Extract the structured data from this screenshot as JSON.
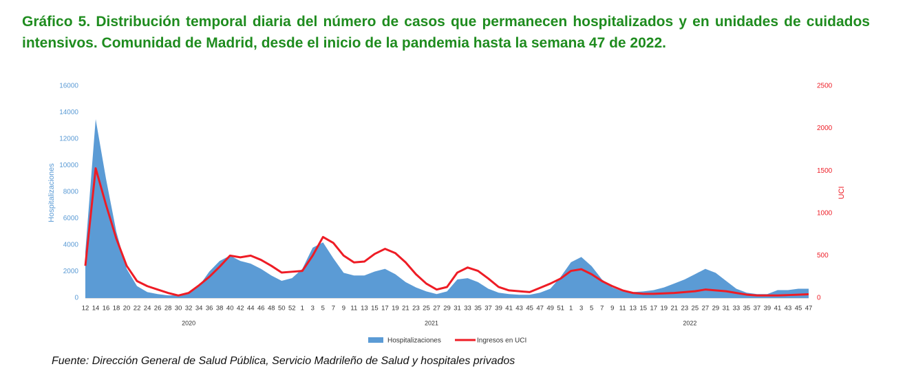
{
  "chart_data": {
    "type": "combo",
    "title": "Gráfico 5. Distribución temporal diaria del número de casos que permanecen hospitalizados y en unidades de cuidados intensivos. Comunidad de Madrid, desde el inicio de la pandemia hasta la semana 47 de 2022.",
    "source": "Fuente: Dirección General de Salud Pública, Servicio Madrileño de Salud y hospitales privados",
    "ylabel": "Hospitalizaciones",
    "y2label": "UCI",
    "categories": [
      "12",
      "14",
      "16",
      "18",
      "20",
      "22",
      "24",
      "26",
      "28",
      "30",
      "32",
      "34",
      "36",
      "38",
      "40",
      "42",
      "44",
      "46",
      "48",
      "50",
      "52",
      "1",
      "3",
      "5",
      "7",
      "9",
      "11",
      "13",
      "15",
      "17",
      "19",
      "21",
      "23",
      "25",
      "27",
      "29",
      "31",
      "33",
      "35",
      "37",
      "39",
      "41",
      "43",
      "45",
      "47",
      "49",
      "51",
      "1",
      "3",
      "5",
      "7",
      "9",
      "11",
      "13",
      "15",
      "17",
      "19",
      "21",
      "23",
      "25",
      "27",
      "29",
      "31",
      "33",
      "35",
      "37",
      "39",
      "41",
      "43",
      "45",
      "47"
    ],
    "groups": [
      "2020",
      "2021",
      "2022"
    ],
    "series": [
      {
        "name": "Hospitalizaciones",
        "type": "area",
        "color": "#5b9bd5",
        "values": [
          3500,
          13500,
          9000,
          5000,
          2200,
          900,
          450,
          300,
          200,
          200,
          350,
          900,
          2000,
          2800,
          3200,
          2800,
          2600,
          2200,
          1700,
          1300,
          1500,
          2200,
          3800,
          4200,
          3000,
          1900,
          1700,
          1700,
          2000,
          2200,
          1800,
          1200,
          800,
          500,
          300,
          500,
          1400,
          1500,
          1200,
          700,
          400,
          300,
          250,
          250,
          400,
          700,
          1600,
          2700,
          3100,
          2400,
          1400,
          800,
          500,
          450,
          500,
          600,
          800,
          1100,
          1400,
          1800,
          2200,
          1900,
          1300,
          700,
          400,
          300,
          300,
          600,
          600,
          700,
          700
        ]
      },
      {
        "name": "Ingresos en UCI",
        "type": "line",
        "axis": "y2",
        "color": "#ee1c25",
        "values": [
          380,
          1530,
          1100,
          700,
          380,
          200,
          140,
          100,
          60,
          30,
          60,
          150,
          250,
          370,
          500,
          480,
          500,
          450,
          380,
          300,
          310,
          320,
          500,
          720,
          650,
          500,
          420,
          430,
          520,
          580,
          530,
          420,
          280,
          170,
          100,
          130,
          300,
          360,
          320,
          230,
          130,
          90,
          80,
          70,
          120,
          170,
          230,
          320,
          340,
          280,
          200,
          140,
          90,
          60,
          50,
          50,
          55,
          60,
          70,
          80,
          100,
          90,
          80,
          60,
          40,
          30,
          30,
          30,
          35,
          40,
          45
        ]
      }
    ],
    "ylim": [
      0,
      16000
    ],
    "yticks": [
      0,
      2000,
      4000,
      6000,
      8000,
      10000,
      12000,
      14000,
      16000
    ],
    "y2lim": [
      0,
      2500
    ],
    "y2ticks": [
      0,
      500,
      1000,
      1500,
      2000,
      2500
    ],
    "grid": false
  }
}
